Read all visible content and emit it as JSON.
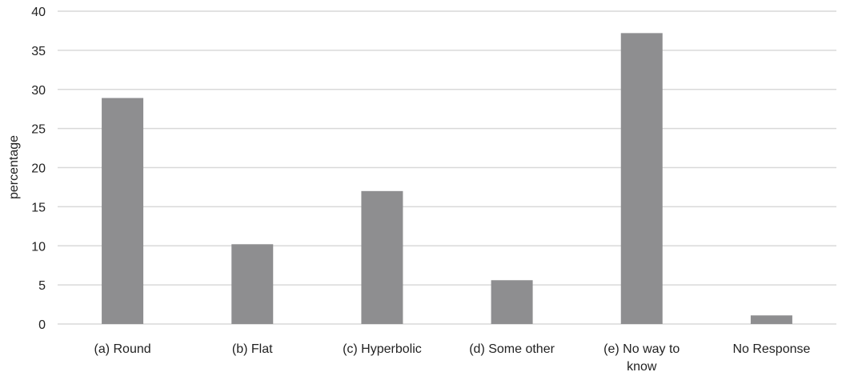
{
  "chart_data": {
    "type": "bar",
    "categories": [
      [
        "(a) Round"
      ],
      [
        "(b) Flat"
      ],
      [
        "(c) Hyperbolic"
      ],
      [
        "(d) Some other"
      ],
      [
        "(e) No way to",
        "know"
      ],
      [
        "No Response"
      ]
    ],
    "values": [
      28.9,
      10.2,
      17.0,
      5.6,
      37.2,
      1.1
    ],
    "ylabel": "percentage",
    "ylim": [
      0,
      40
    ],
    "yticks": [
      "0",
      "5",
      "10",
      "15",
      "20",
      "25",
      "30",
      "35",
      "40"
    ],
    "grid": true,
    "bar_color": "#8e8e90",
    "grid_color": "#d9d9d9"
  }
}
